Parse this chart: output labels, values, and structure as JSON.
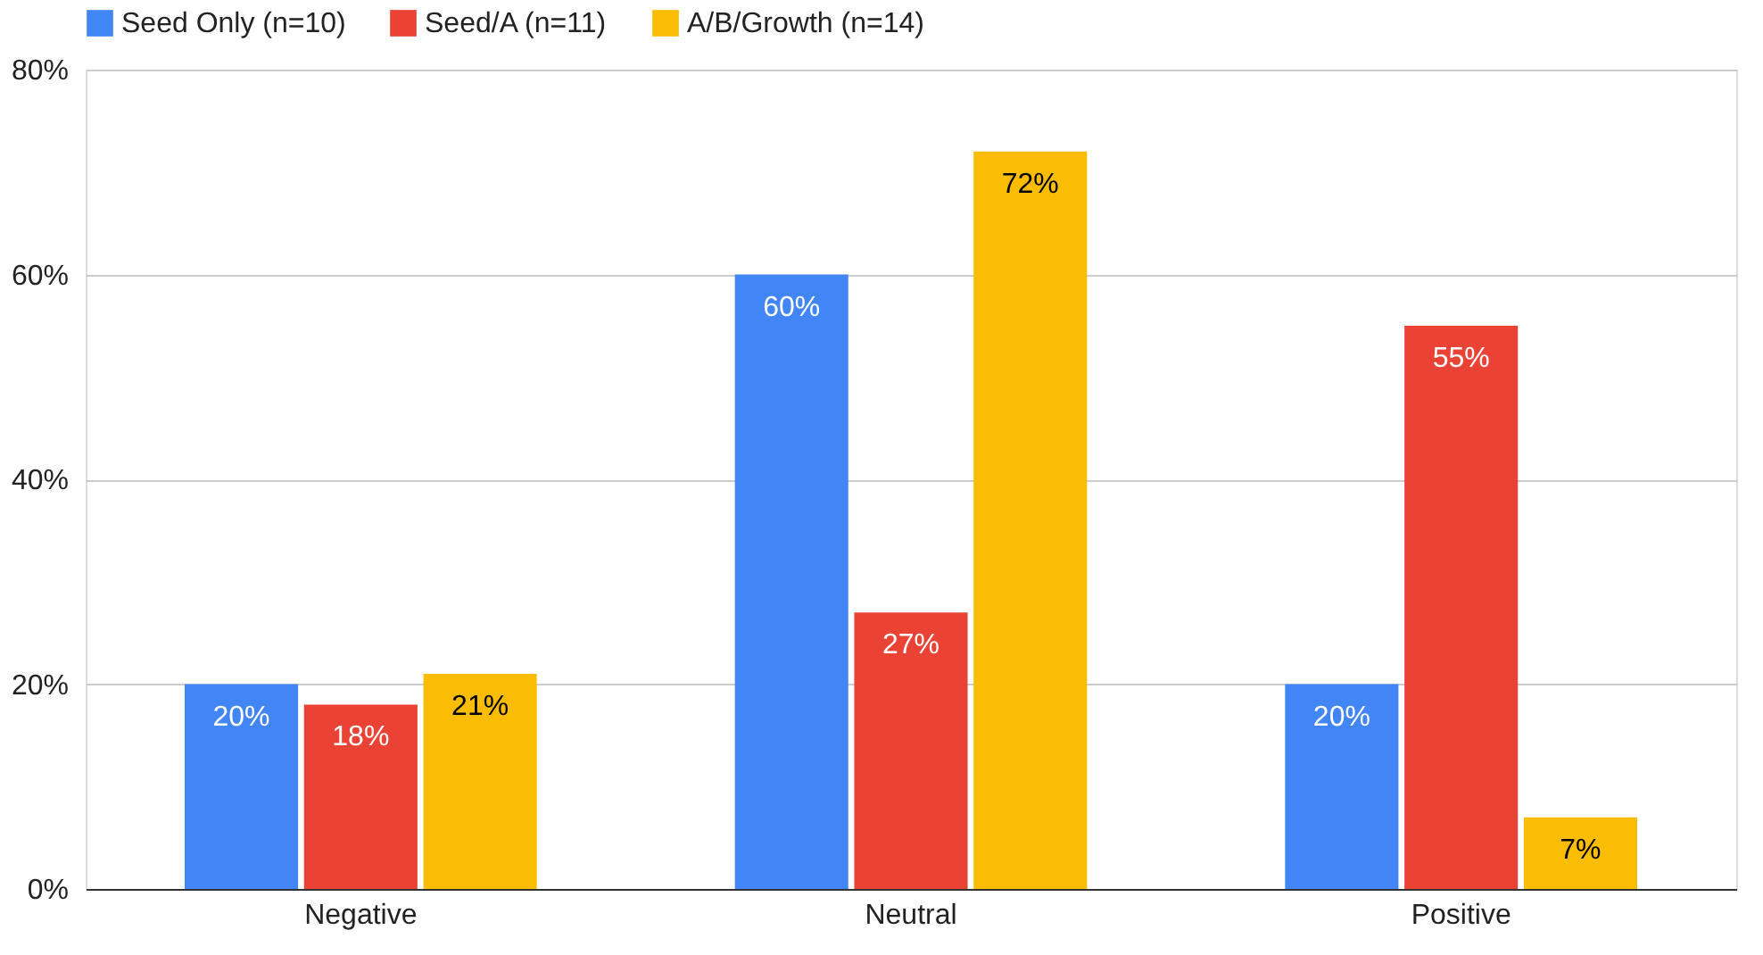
{
  "chart_data": {
    "type": "bar",
    "categories": [
      "Negative",
      "Neutral",
      "Positive"
    ],
    "series": [
      {
        "name": "Seed Only (n=10)",
        "color": "#4285f4",
        "values": [
          20,
          60,
          20
        ],
        "value_labels": [
          "20%",
          "60%",
          "20%"
        ]
      },
      {
        "name": "Seed/A (n=11)",
        "color": "#ea4335",
        "values": [
          18,
          27,
          55
        ],
        "value_labels": [
          "18%",
          "27%",
          "55%"
        ]
      },
      {
        "name": "A/B/Growth (n=14)",
        "color": "#fbbc04",
        "values": [
          21,
          72,
          7
        ],
        "value_labels": [
          "21%",
          "72%",
          "7%"
        ]
      }
    ],
    "ylim": [
      0,
      80
    ],
    "yticks": [
      {
        "value": 0,
        "label": "0%"
      },
      {
        "value": 20,
        "label": "20%"
      },
      {
        "value": 40,
        "label": "40%"
      },
      {
        "value": 60,
        "label": "60%"
      },
      {
        "value": 80,
        "label": "80%"
      }
    ],
    "grid": "y",
    "legend": "top"
  }
}
